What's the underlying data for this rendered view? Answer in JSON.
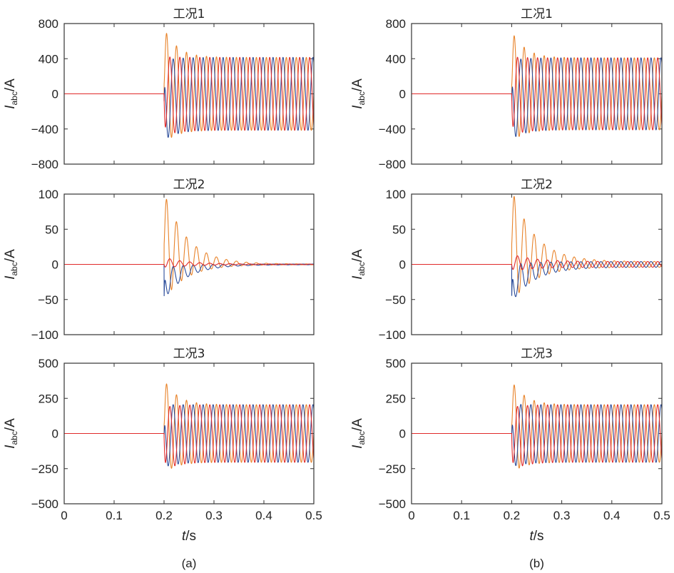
{
  "figure": {
    "xlabel_italic": "t",
    "xlabel_rest": "/s",
    "ylabel_main": "I",
    "ylabel_sub": "abc",
    "ylabel_unit": "/A",
    "captions": [
      "(a)",
      "(b)"
    ]
  },
  "chart_data": [
    {
      "type": "line",
      "column": "(a)",
      "title": "工况1",
      "ylim": [
        -800,
        800
      ],
      "yticks": [
        800,
        400,
        0,
        -400,
        -800
      ],
      "xlim": [
        0,
        0.5
      ],
      "xticks": [
        0,
        0.1,
        0.2,
        0.3,
        0.4,
        0.5
      ],
      "fault_time": 0.2,
      "frequency_hz": 50,
      "steady_amplitude": 415,
      "decay_tau": 0.025,
      "series": [
        {
          "color": "#e8832a",
          "phase_deg": 0,
          "offset": 350
        },
        {
          "color": "#2b4c9a",
          "phase_deg": 120,
          "offset": -250
        },
        {
          "color": "#e02a2a",
          "phase_deg": 240,
          "offset": -100
        }
      ]
    },
    {
      "type": "line",
      "column": "(a)",
      "title": "工况2",
      "ylim": [
        -100,
        100
      ],
      "yticks": [
        100,
        50,
        0,
        -50,
        -100
      ],
      "xlim": [
        0,
        0.5
      ],
      "xticks": [
        0,
        0.1,
        0.2,
        0.3,
        0.4,
        0.5
      ],
      "fault_time": 0.2,
      "frequency_hz": 50,
      "steady_amplitude": 0.5,
      "decay_tau": 0.045,
      "series": [
        {
          "color": "#e8832a",
          "phase_deg": 0,
          "offset": 55
        },
        {
          "color": "#2b4c9a",
          "phase_deg": 120,
          "offset": -55
        },
        {
          "color": "#e02a2a",
          "phase_deg": 240,
          "offset": 5
        }
      ]
    },
    {
      "type": "line",
      "column": "(a)",
      "title": "工况3",
      "ylim": [
        -500,
        500
      ],
      "yticks": [
        500,
        250,
        0,
        -250,
        -500
      ],
      "xlim": [
        0,
        0.5
      ],
      "xticks": [
        0,
        0.1,
        0.2,
        0.3,
        0.4,
        0.5
      ],
      "fault_time": 0.2,
      "frequency_hz": 50,
      "steady_amplitude": 205,
      "decay_tau": 0.025,
      "series": [
        {
          "color": "#e8832a",
          "phase_deg": 0,
          "offset": 190
        },
        {
          "color": "#2b4c9a",
          "phase_deg": 120,
          "offset": -60
        },
        {
          "color": "#e02a2a",
          "phase_deg": 240,
          "offset": -130
        }
      ]
    },
    {
      "type": "line",
      "column": "(b)",
      "title": "工况1",
      "ylim": [
        -800,
        800
      ],
      "yticks": [
        800,
        400,
        0,
        -400,
        -800
      ],
      "xlim": [
        0,
        0.5
      ],
      "xticks": [
        0,
        0.1,
        0.2,
        0.3,
        0.4,
        0.5
      ],
      "fault_time": 0.2,
      "frequency_hz": 50,
      "steady_amplitude": 410,
      "decay_tau": 0.025,
      "series": [
        {
          "color": "#e8832a",
          "phase_deg": 0,
          "offset": 320
        },
        {
          "color": "#2b4c9a",
          "phase_deg": 120,
          "offset": -230
        },
        {
          "color": "#e02a2a",
          "phase_deg": 240,
          "offset": -90
        }
      ]
    },
    {
      "type": "line",
      "column": "(b)",
      "title": "工况2",
      "ylim": [
        -100,
        100
      ],
      "yticks": [
        100,
        50,
        0,
        -50,
        -100
      ],
      "xlim": [
        0,
        0.5
      ],
      "xticks": [
        0,
        0.1,
        0.2,
        0.3,
        0.4,
        0.5
      ],
      "fault_time": 0.2,
      "frequency_hz": 50,
      "steady_amplitude": 4,
      "decay_tau": 0.045,
      "series": [
        {
          "color": "#e8832a",
          "phase_deg": 0,
          "offset": 55
        },
        {
          "color": "#2b4c9a",
          "phase_deg": 120,
          "offset": -55
        },
        {
          "color": "#e02a2a",
          "phase_deg": 240,
          "offset": 5
        }
      ]
    },
    {
      "type": "line",
      "column": "(b)",
      "title": "工况3",
      "ylim": [
        -500,
        500
      ],
      "yticks": [
        500,
        250,
        0,
        -250,
        -500
      ],
      "xlim": [
        0,
        0.5
      ],
      "xticks": [
        0,
        0.1,
        0.2,
        0.3,
        0.4,
        0.5
      ],
      "fault_time": 0.2,
      "frequency_hz": 50,
      "steady_amplitude": 205,
      "decay_tau": 0.025,
      "series": [
        {
          "color": "#e8832a",
          "phase_deg": 0,
          "offset": 180
        },
        {
          "color": "#2b4c9a",
          "phase_deg": 120,
          "offset": -50
        },
        {
          "color": "#e02a2a",
          "phase_deg": 240,
          "offset": -130
        }
      ]
    }
  ]
}
